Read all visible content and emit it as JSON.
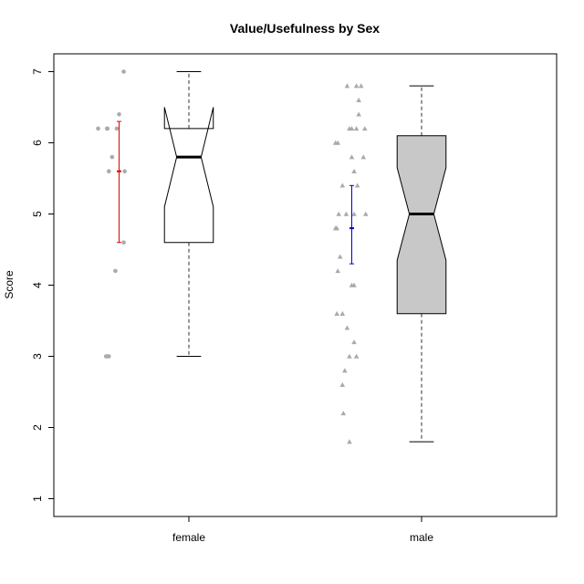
{
  "chart_data": {
    "type": "boxplot",
    "title": "Value/Usefulness by Sex",
    "xlabel": "",
    "ylabel": "Score",
    "ylim": [
      0.75,
      7.25
    ],
    "yticks": [
      "1",
      "2",
      "3",
      "4",
      "5",
      "6",
      "7"
    ],
    "categories": [
      "female",
      "male"
    ],
    "boxes": [
      {
        "category": "female",
        "min": 3.0,
        "q1": 4.6,
        "median": 5.8,
        "q3": 6.2,
        "max": 7.0,
        "notch_low": 5.1,
        "notch_high": 6.5,
        "fill": "#ffffff"
      },
      {
        "category": "male",
        "min": 1.8,
        "q1": 3.6,
        "median": 5.0,
        "q3": 6.1,
        "max": 6.8,
        "notch_low": 4.35,
        "notch_high": 5.65,
        "fill": "#c8c8c8"
      }
    ],
    "mean_ci": [
      {
        "category": "female",
        "mean": 5.6,
        "low": 4.6,
        "high": 6.3,
        "color": "#e00000"
      },
      {
        "category": "male",
        "mean": 4.8,
        "low": 4.3,
        "high": 5.4,
        "color": "#0000cc"
      }
    ],
    "points": [
      {
        "category": "female",
        "marker": "circle",
        "color": "#aaaaaa",
        "jitter": [
          -0.45,
          -0.25,
          -0.22,
          -0.15,
          -0.05,
          0.1,
          0.12,
          -0.25,
          -0.22,
          0.0,
          0.1,
          -0.08,
          -0.28,
          -0.26
        ],
        "values": [
          6.2,
          6.2,
          5.6,
          5.8,
          6.2,
          7.0,
          5.6,
          3.0,
          3.0,
          6.4,
          4.6,
          4.2,
          3.0,
          6.2
        ]
      },
      {
        "category": "male",
        "marker": "triangle",
        "color": "#aaaaaa",
        "jitter": [
          -0.35,
          -0.3,
          -0.05,
          0.0,
          0.1,
          0.15,
          -0.1,
          0.0,
          0.05,
          0.25,
          0.15,
          -0.28,
          0.05,
          0.3,
          -0.12,
          -0.3,
          -0.25,
          0.0,
          0.05,
          -0.2,
          -0.32,
          -0.1,
          0.05,
          -0.05,
          0.1,
          -0.15,
          -0.2,
          -0.18,
          -0.05,
          0.1,
          0.2,
          -0.35,
          -0.32,
          0.12,
          -0.2,
          0.28
        ],
        "values": [
          6.0,
          6.0,
          6.2,
          6.2,
          6.2,
          6.6,
          6.8,
          5.8,
          5.6,
          5.8,
          6.4,
          5.0,
          5.0,
          5.0,
          5.0,
          4.2,
          4.4,
          4.0,
          4.0,
          3.6,
          3.6,
          3.4,
          3.2,
          3.0,
          3.0,
          2.8,
          2.6,
          2.2,
          1.8,
          6.8,
          6.8,
          4.8,
          4.8,
          5.4,
          5.4,
          6.2
        ]
      }
    ]
  }
}
